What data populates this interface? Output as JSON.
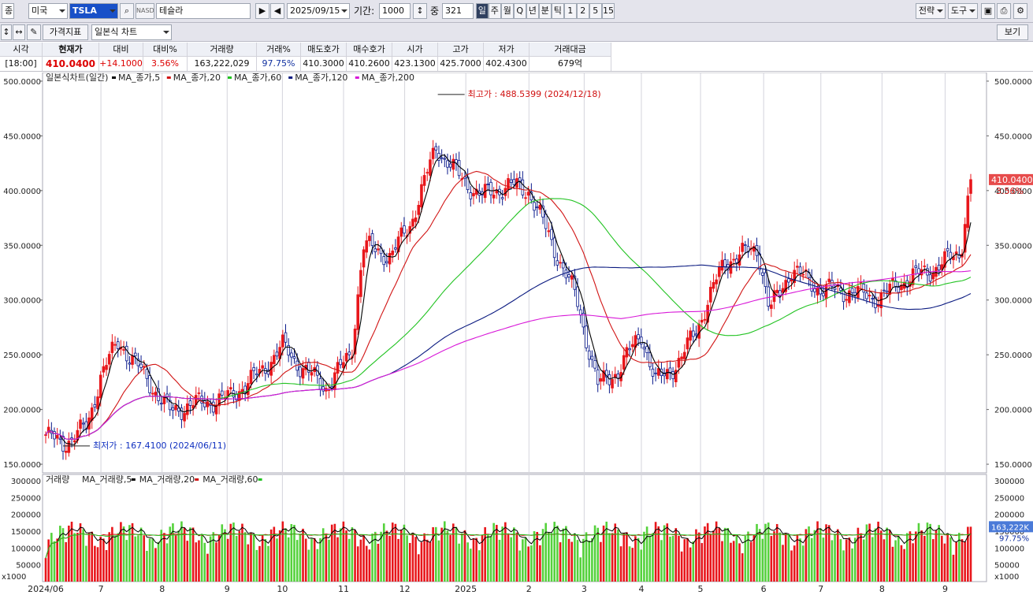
{
  "toolbar": {
    "market_label": "종",
    "market_value": "미국",
    "ticker": "TSLA",
    "exchange_badge": "NASD",
    "name": "테슬라",
    "date": "2025/09/15",
    "period_label": "기간:",
    "period_value": "1000",
    "count_label": "중",
    "count_value": "321",
    "periods": [
      "일",
      "주",
      "월",
      "Q",
      "년",
      "분",
      "틱",
      "1",
      "2",
      "5",
      "15"
    ],
    "strategy_button": "전략",
    "tools_button": "도구",
    "indicator_button": "가격지표",
    "chart_type": "일본식 차트",
    "view_button": "보기"
  },
  "quote": {
    "headers": [
      "시각",
      "현재가",
      "대비",
      "대비%",
      "거래량",
      "거래%",
      "매도호가",
      "매수호가",
      "시가",
      "고가",
      "저가",
      "거래대금"
    ],
    "values": [
      "[18:00]",
      "410.0400",
      "+14.1000",
      "3.56%",
      "163,222,029",
      "97.75%",
      "410.3000",
      "410.2600",
      "423.1300",
      "425.7000",
      "402.4300",
      "679억"
    ]
  },
  "colors": {
    "up": "#e8161b",
    "down": "#0a1a8c",
    "ma5": "#000000",
    "ma20": "#d11414",
    "ma60": "#22c322",
    "ma120": "#0a1a80",
    "ma200": "#d818d8",
    "vol_up": "#e8161b",
    "vol_down": "#55d23c"
  },
  "chart_data": {
    "type": "line",
    "title": "일본식차트(일간)",
    "legend": [
      "MA_종가,5",
      "MA_종가,20",
      "MA_종가,60",
      "MA_종가,120",
      "MA_종가,200"
    ],
    "ylim": [
      145,
      505
    ],
    "yticks": [
      "500.0000",
      "450.0000",
      "400.0000",
      "350.0000",
      "300.0000",
      "250.0000",
      "200.0000",
      "150.0000"
    ],
    "xticks": [
      "2024/06",
      "7",
      "8",
      "9",
      "10",
      "11",
      "12",
      "2025",
      "2",
      "3",
      "4",
      "5",
      "6",
      "7",
      "8",
      "9"
    ],
    "series": [
      {
        "name": "종가",
        "x": [
          "2024-06-03",
          "2024-06-11",
          "2024-06-24",
          "2024-07-01",
          "2024-07-10",
          "2024-07-23",
          "2024-08-05",
          "2024-08-15",
          "2024-09-03",
          "2024-09-20",
          "2024-10-01",
          "2024-10-10",
          "2024-10-23",
          "2024-11-05",
          "2024-11-11",
          "2024-11-25",
          "2024-12-05",
          "2024-12-18",
          "2024-12-31",
          "2025-01-10",
          "2025-01-24",
          "2025-02-03",
          "2025-02-14",
          "2025-02-27",
          "2025-03-10",
          "2025-03-20",
          "2025-04-01",
          "2025-04-08",
          "2025-04-21",
          "2025-05-01",
          "2025-05-13",
          "2025-05-30",
          "2025-06-05",
          "2025-06-16",
          "2025-07-01",
          "2025-07-15",
          "2025-07-31",
          "2025-08-12",
          "2025-08-29",
          "2025-09-10",
          "2025-09-15"
        ],
        "values": [
          177,
          168,
          184,
          232,
          262,
          231,
          198,
          204,
          210,
          234,
          258,
          240,
          220,
          251,
          350,
          340,
          370,
          440,
          410,
          395,
          405,
          400,
          355,
          302,
          222,
          235,
          270,
          225,
          245,
          282,
          335,
          348,
          290,
          328,
          310,
          308,
          302,
          318,
          330,
          345,
          410.04
        ]
      },
      {
        "name": "MA_종가,5",
        "values": []
      },
      {
        "name": "MA_종가,20",
        "values": []
      },
      {
        "name": "MA_종가,60",
        "values": []
      },
      {
        "name": "MA_종가,120",
        "values": []
      },
      {
        "name": "MA_종가,200",
        "values": []
      }
    ],
    "annotations": [
      {
        "text": "최고가 : 488.5399 (2024/12/18)",
        "x": "2024-12-18",
        "y": 488.5399
      },
      {
        "text": "최저가 : 167.4100 (2024/06/11)",
        "x": "2024-06-11",
        "y": 167.41
      }
    ],
    "last_price_label": "410.0400",
    "last_change_label": "3.56%",
    "volume": {
      "title": "거래량",
      "legend": [
        "MA_거래량,5",
        "MA_거래량,20",
        "MA_거래량,60"
      ],
      "ylim": [
        0,
        300000
      ],
      "yticks": [
        "300000",
        "250000",
        "200000",
        "150000",
        "100000",
        "50000"
      ],
      "unit_label": "x1000",
      "last_label": "163,222K",
      "last_pct": "97.75%"
    }
  }
}
